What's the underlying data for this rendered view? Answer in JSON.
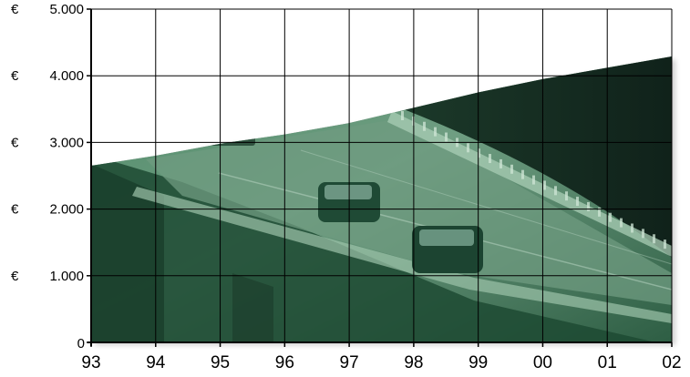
{
  "chart_data": {
    "type": "area",
    "title": "",
    "xlabel": "",
    "ylabel": "",
    "currency_symbol": "€",
    "categories": [
      "93",
      "94",
      "95",
      "96",
      "97",
      "98",
      "99",
      "00",
      "01",
      "02"
    ],
    "y_tick_labels": [
      "0",
      "1.000",
      "2.000",
      "3.000",
      "4.000",
      "5.000"
    ],
    "y_ticks": [
      0,
      1000,
      2000,
      3000,
      4000,
      5000
    ],
    "ylim": [
      0,
      5000
    ],
    "grid": true,
    "series": [
      {
        "values": [
          2650,
          2800,
          2980,
          3120,
          3290,
          3520,
          3750,
          3950,
          4120,
          4290
        ]
      }
    ],
    "fill_style": "photo-texture",
    "colors": {
      "fill_light": "#6f9b80",
      "fill_mid": "#3f7a5a",
      "fill_dark": "#1d4a33",
      "fill_night": "#132a1f",
      "grid": "#000000"
    }
  }
}
